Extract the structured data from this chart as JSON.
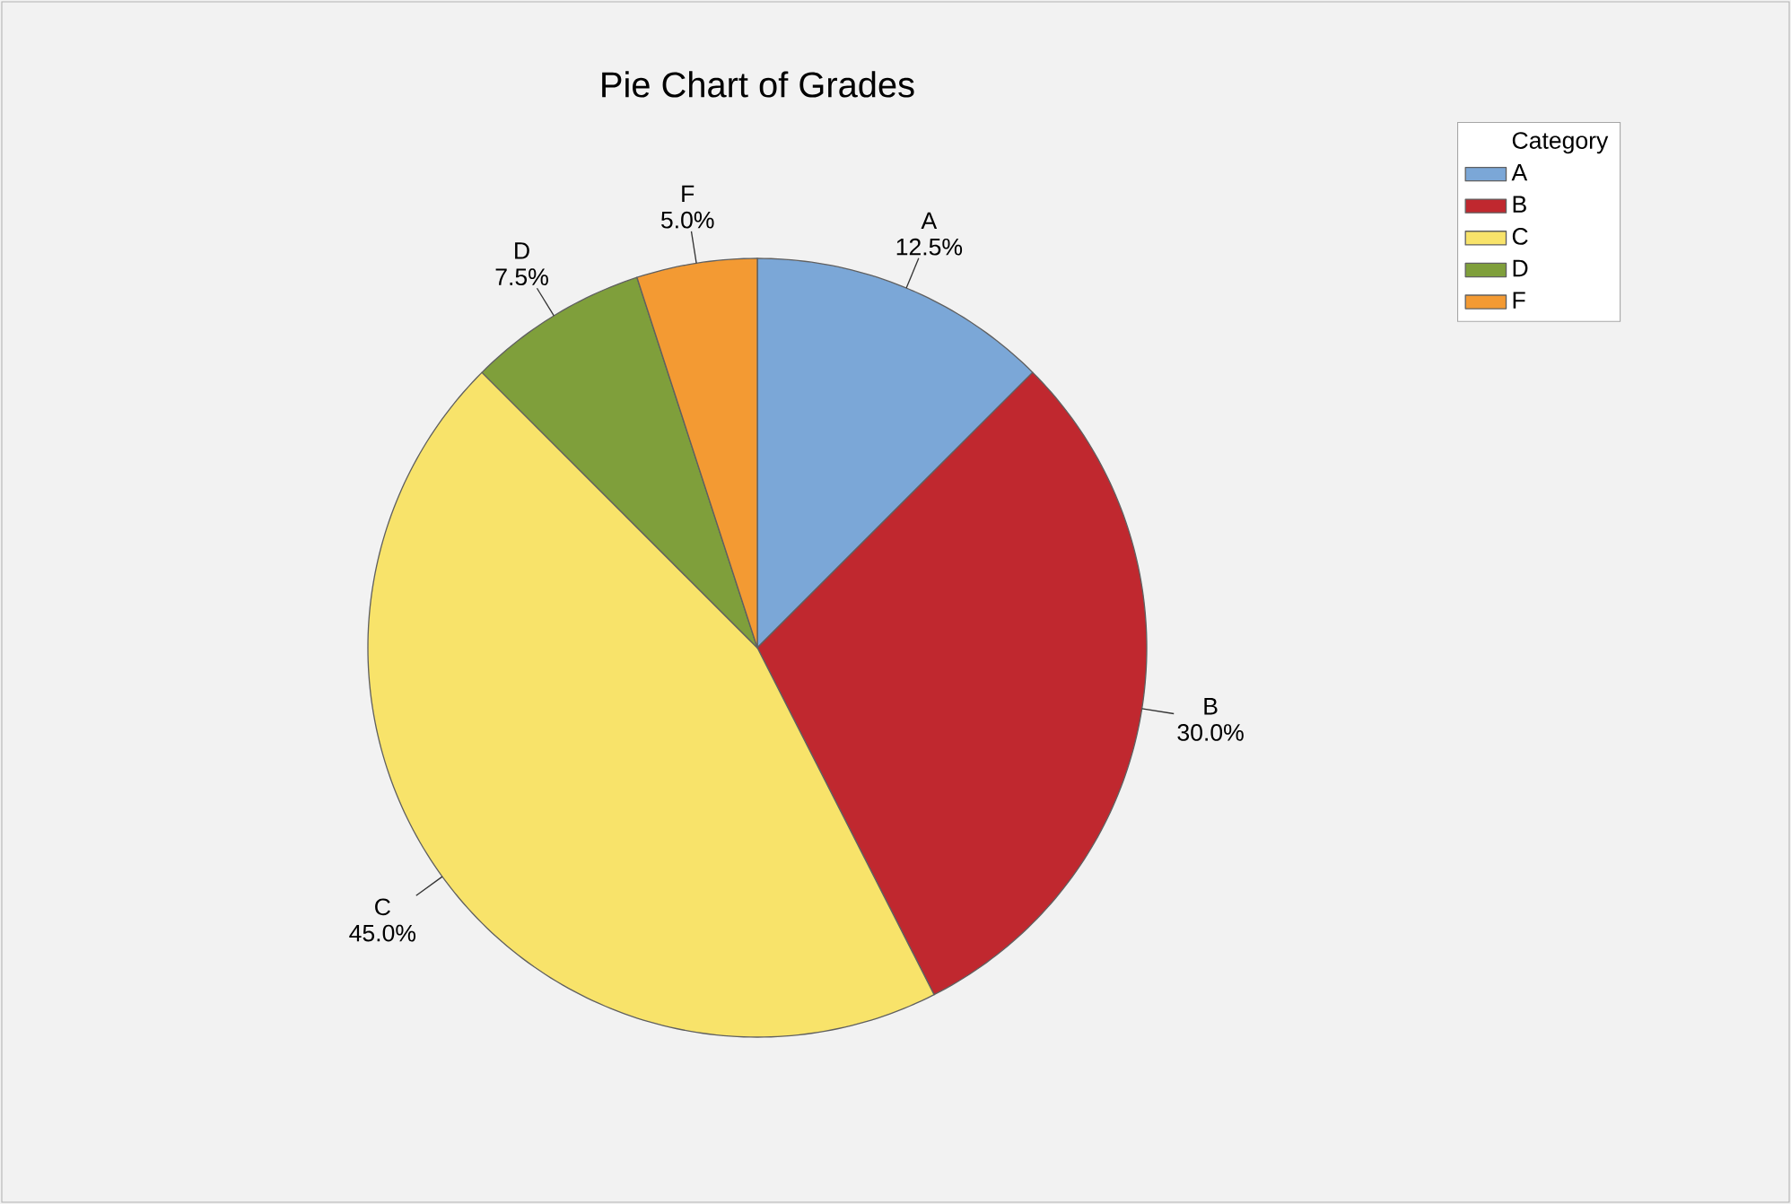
{
  "chart_data": {
    "type": "pie",
    "title": "Pie Chart of Grades",
    "legend_title": "Category",
    "legend": "top right",
    "categories": [
      "A",
      "B",
      "C",
      "D",
      "F"
    ],
    "values": [
      12.5,
      30.0,
      45.0,
      7.5,
      5.0
    ],
    "value_labels": [
      "12.5%",
      "30.0%",
      "45.0%",
      "7.5%",
      "5.0%"
    ],
    "colors": [
      "#7ba7d7",
      "#c0282f",
      "#f8e36a",
      "#7f9f3b",
      "#f39a33"
    ]
  }
}
